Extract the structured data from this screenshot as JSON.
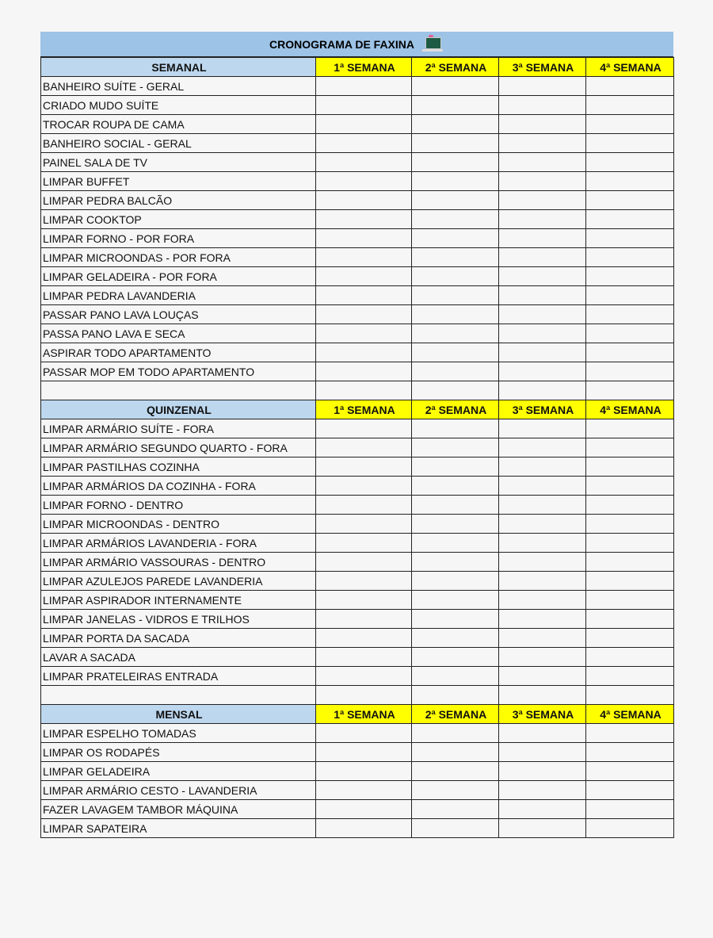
{
  "title": "CRONOGRAMA DE FAXINA",
  "title_icon": "computer-desk-icon",
  "week_labels": [
    "1ª SEMANA",
    "2ª SEMANA",
    "3ª SEMANA",
    "4ª SEMANA"
  ],
  "colors": {
    "title_bg": "#9dc3e6",
    "section_bg": "#bdd7ee",
    "week_bg": "#ffff00"
  },
  "sections": [
    {
      "name": "SEMANAL",
      "items": [
        "BANHEIRO SUÍTE - GERAL",
        "CRIADO MUDO SUÍTE",
        "TROCAR ROUPA DE CAMA",
        "BANHEIRO SOCIAL - GERAL",
        "PAINEL SALA DE TV",
        "LIMPAR BUFFET",
        "LIMPAR PEDRA BALCÃO",
        "LIMPAR COOKTOP",
        "LIMPAR FORNO - POR FORA",
        "LIMPAR MICROONDAS - POR FORA",
        "LIMPAR GELADEIRA - POR FORA",
        "LIMPAR PEDRA LAVANDERIA",
        "PASSAR PANO LAVA LOUÇAS",
        "PASSA PANO LAVA E SECA",
        "ASPIRAR TODO APARTAMENTO",
        "PASSAR MOP EM TODO APARTAMENTO"
      ]
    },
    {
      "name": "QUINZENAL",
      "items": [
        "LIMPAR ARMÁRIO SUÍTE - FORA",
        "LIMPAR ARMÁRIO SEGUNDO QUARTO - FORA",
        "LIMPAR PASTILHAS COZINHA",
        "LIMPAR ARMÁRIOS DA COZINHA - FORA",
        "LIMPAR FORNO - DENTRO",
        "LIMPAR MICROONDAS - DENTRO",
        "LIMPAR ARMÁRIOS LAVANDERIA - FORA",
        "LIMPAR ARMÁRIO VASSOURAS - DENTRO",
        "LIMPAR AZULEJOS PAREDE LAVANDERIA",
        "LIMPAR ASPIRADOR INTERNAMENTE",
        "LIMPAR JANELAS - VIDROS E TRILHOS",
        "LIMPAR PORTA DA SACADA",
        "LAVAR A SACADA",
        "LIMPAR PRATELEIRAS ENTRADA"
      ]
    },
    {
      "name": "MENSAL",
      "items": [
        "LIMPAR ESPELHO TOMADAS",
        "LIMPAR OS RODAPÉS",
        "LIMPAR GELADEIRA",
        "LIMPAR ARMÁRIO CESTO - LAVANDERIA",
        "FAZER LAVAGEM TAMBOR MÁQUINA",
        "LIMPAR SAPATEIRA"
      ]
    }
  ]
}
